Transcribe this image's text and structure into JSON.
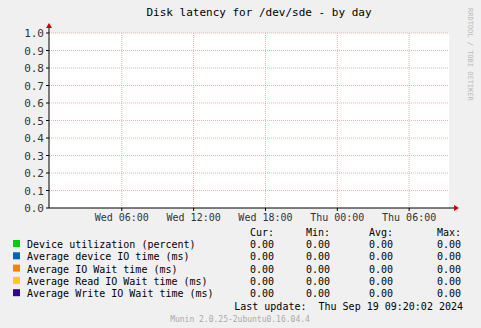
{
  "chart_data": {
    "type": "line",
    "title": "Disk latency for /dev/sde - by day",
    "x": [],
    "xlim": [
      -0.08,
      33.33
    ],
    "xticks": [
      {
        "value": 6,
        "label": "Wed 06:00"
      },
      {
        "value": 12,
        "label": "Wed 12:00"
      },
      {
        "value": 18,
        "label": "Wed 18:00"
      },
      {
        "value": 24,
        "label": "Thu 00:00"
      },
      {
        "value": 30,
        "label": "Thu 06:00"
      }
    ],
    "ylim": [
      0,
      1
    ],
    "yticks": [
      {
        "value": 0,
        "label": "0.0"
      },
      {
        "value": 0.1,
        "label": "0.1"
      },
      {
        "value": 0.2,
        "label": "0.2"
      },
      {
        "value": 0.3,
        "label": "0.3"
      },
      {
        "value": 0.4,
        "label": "0.4"
      },
      {
        "value": 0.5,
        "label": "0.5"
      },
      {
        "value": 0.6,
        "label": "0.6"
      },
      {
        "value": 0.7,
        "label": "0.7"
      },
      {
        "value": 0.8,
        "label": "0.8"
      },
      {
        "value": 0.9,
        "label": "0.9"
      },
      {
        "value": 1,
        "label": "1.0"
      }
    ],
    "grid": true,
    "stat_headers": [
      "Cur:",
      "Min:",
      "Avg:",
      "Max:"
    ],
    "series": [
      {
        "name": "Device utilization (percent)",
        "color": "#00cc00",
        "values": [],
        "stats": [
          0,
          0,
          0,
          0
        ],
        "stats_labels": [
          "0.00",
          "0.00",
          "0.00",
          "0.00"
        ]
      },
      {
        "name": "Average device IO time (ms)",
        "color": "#0066b3",
        "values": [],
        "stats": [
          0,
          0,
          0,
          0
        ],
        "stats_labels": [
          "0.00",
          "0.00",
          "0.00",
          "0.00"
        ]
      },
      {
        "name": "Average IO Wait time (ms)",
        "color": "#ff8000",
        "values": [],
        "stats": [
          0,
          0,
          0,
          0
        ],
        "stats_labels": [
          "0.00",
          "0.00",
          "0.00",
          "0.00"
        ]
      },
      {
        "name": "Average Read IO Wait time (ms)",
        "color": "#ffcc00",
        "values": [],
        "stats": [
          0,
          0,
          0,
          0
        ],
        "stats_labels": [
          "0.00",
          "0.00",
          "0.00",
          "0.00"
        ]
      },
      {
        "name": "Average Write IO Wait time (ms)",
        "color": "#330099",
        "values": [],
        "stats": [
          0,
          0,
          0,
          0
        ],
        "stats_labels": [
          "0.00",
          "0.00",
          "0.00",
          "0.00"
        ]
      }
    ],
    "last_update": "Last update:  Thu Sep 19 09:20:02 2024",
    "footer": "Munin 2.0.25-2ubuntu0.16.04.4",
    "watermark": "RRDTOOL / TOBI OETIKER"
  }
}
